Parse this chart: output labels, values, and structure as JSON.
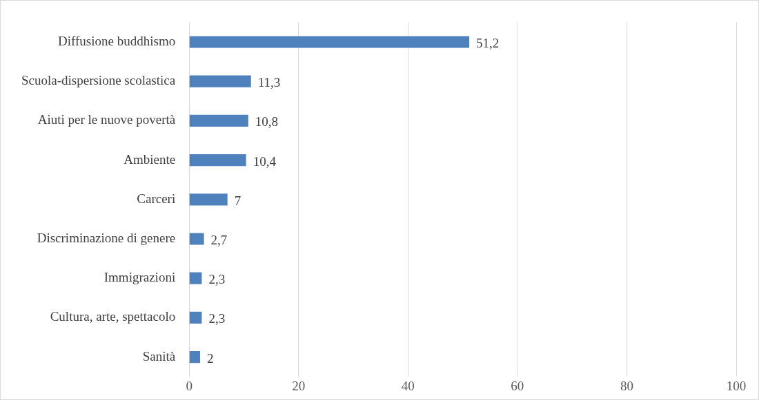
{
  "chart_data": {
    "type": "bar",
    "orientation": "horizontal",
    "categories": [
      "Diffusione buddhismo",
      "Scuola-dispersione scolastica",
      "Aiuti per le nuove povertà",
      "Ambiente",
      "Carceri",
      "Discriminazione di genere",
      "Immigrazioni",
      "Cultura, arte, spettacolo",
      "Sanità"
    ],
    "values": [
      51.2,
      11.3,
      10.8,
      10.4,
      7,
      2.7,
      2.3,
      2.3,
      2
    ],
    "value_labels": [
      "51,2",
      "11,3",
      "10,8",
      "10,4",
      "7",
      "2,7",
      "2,3",
      "2,3",
      "2"
    ],
    "color": "#4f81bd",
    "xlim": [
      0,
      100
    ],
    "xticks": [
      0,
      20,
      40,
      60,
      80,
      100
    ],
    "grid": "x",
    "legend": false
  }
}
